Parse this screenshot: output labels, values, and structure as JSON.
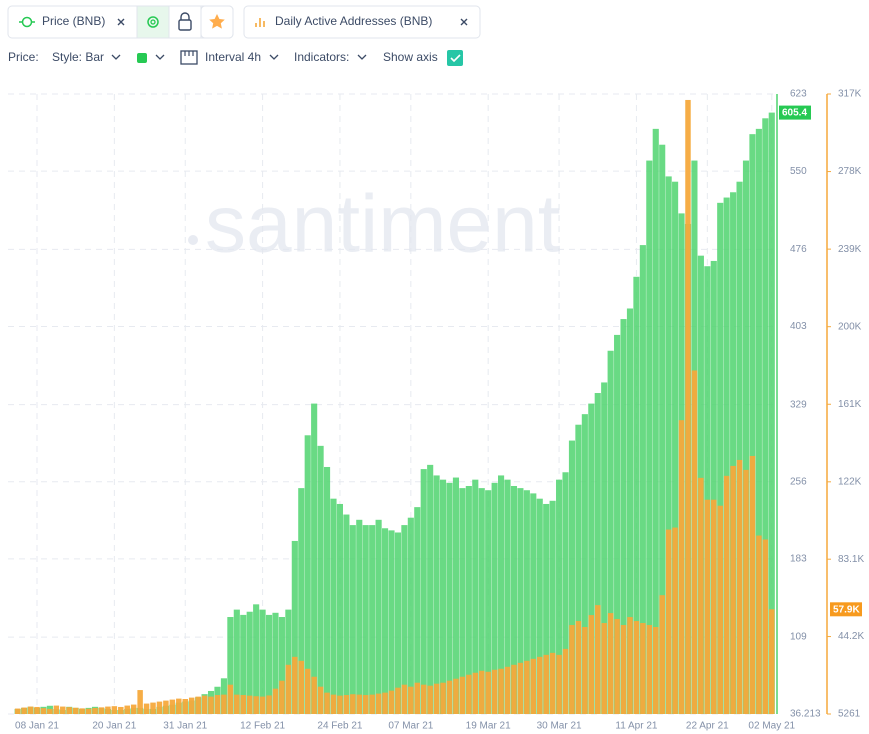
{
  "ui": {
    "toolbar": {
      "label": "Price:",
      "style": "Style: Bar",
      "interval": "Interval 4h",
      "indicators": "Indicators:",
      "show_axis": "Show axis"
    },
    "watermark": "santiment"
  },
  "chart_data": {
    "type": "bar",
    "x": [
      "2021-01-05",
      "2021-01-06",
      "2021-01-07",
      "2021-01-08",
      "2021-01-09",
      "2021-01-10",
      "2021-01-11",
      "2021-01-12",
      "2021-01-13",
      "2021-01-14",
      "2021-01-15",
      "2021-01-16",
      "2021-01-17",
      "2021-01-18",
      "2021-01-19",
      "2021-01-20",
      "2021-01-21",
      "2021-01-22",
      "2021-01-23",
      "2021-01-24",
      "2021-01-25",
      "2021-01-26",
      "2021-01-27",
      "2021-01-28",
      "2021-01-29",
      "2021-01-30",
      "2021-01-31",
      "2021-02-01",
      "2021-02-02",
      "2021-02-03",
      "2021-02-04",
      "2021-02-05",
      "2021-02-06",
      "2021-02-07",
      "2021-02-08",
      "2021-02-09",
      "2021-02-10",
      "2021-02-11",
      "2021-02-12",
      "2021-02-13",
      "2021-02-14",
      "2021-02-15",
      "2021-02-16",
      "2021-02-17",
      "2021-02-18",
      "2021-02-19",
      "2021-02-20",
      "2021-02-21",
      "2021-02-22",
      "2021-02-23",
      "2021-02-24",
      "2021-02-25",
      "2021-02-26",
      "2021-02-27",
      "2021-02-28",
      "2021-03-01",
      "2021-03-02",
      "2021-03-03",
      "2021-03-04",
      "2021-03-05",
      "2021-03-06",
      "2021-03-07",
      "2021-03-08",
      "2021-03-09",
      "2021-03-10",
      "2021-03-11",
      "2021-03-12",
      "2021-03-13",
      "2021-03-14",
      "2021-03-15",
      "2021-03-16",
      "2021-03-17",
      "2021-03-18",
      "2021-03-19",
      "2021-03-20",
      "2021-03-21",
      "2021-03-22",
      "2021-03-23",
      "2021-03-24",
      "2021-03-25",
      "2021-03-26",
      "2021-03-27",
      "2021-03-28",
      "2021-03-29",
      "2021-03-30",
      "2021-03-31",
      "2021-04-01",
      "2021-04-02",
      "2021-04-03",
      "2021-04-04",
      "2021-04-05",
      "2021-04-06",
      "2021-04-07",
      "2021-04-08",
      "2021-04-09",
      "2021-04-10",
      "2021-04-11",
      "2021-04-12",
      "2021-04-13",
      "2021-04-14",
      "2021-04-15",
      "2021-04-16",
      "2021-04-17",
      "2021-04-18",
      "2021-04-19",
      "2021-04-20",
      "2021-04-21",
      "2021-04-22",
      "2021-04-23",
      "2021-04-24",
      "2021-04-25",
      "2021-04-26",
      "2021-04-27",
      "2021-04-28",
      "2021-04-29",
      "2021-04-30",
      "2021-05-01",
      "2021-05-02"
    ],
    "xlim": [
      "2021-01-04",
      "2021-05-03"
    ],
    "xticks": [
      {
        "value": "2021-01-08",
        "label": "08 Jan 21"
      },
      {
        "value": "2021-01-20",
        "label": "20 Jan 21"
      },
      {
        "value": "2021-01-31",
        "label": "31 Jan 21"
      },
      {
        "value": "2021-02-12",
        "label": "12 Feb 21"
      },
      {
        "value": "2021-02-24",
        "label": "24 Feb 21"
      },
      {
        "value": "2021-03-07",
        "label": "07 Mar 21"
      },
      {
        "value": "2021-03-19",
        "label": "19 Mar 21"
      },
      {
        "value": "2021-03-30",
        "label": "30 Mar 21"
      },
      {
        "value": "2021-04-11",
        "label": "11 Apr 21"
      },
      {
        "value": "2021-04-22",
        "label": "22 Apr 21"
      },
      {
        "value": "2021-05-02",
        "label": "02 May 21"
      }
    ],
    "ylim": [
      36.213,
      623
    ],
    "yticks": [
      36.213,
      109,
      183,
      256,
      329,
      403,
      476,
      550,
      623
    ],
    "y2lim": [
      5261,
      317000
    ],
    "y2ticks": [
      5261,
      {
        "value": 44200,
        "label": "44.2K"
      },
      {
        "value": 83100,
        "label": "83.1K"
      },
      {
        "value": 122000,
        "label": "122K"
      },
      {
        "value": 161000,
        "label": "161K"
      },
      {
        "value": 200000,
        "label": "200K"
      },
      {
        "value": 239000,
        "label": "239K"
      },
      {
        "value": 278000,
        "label": "278K"
      },
      {
        "value": 317000,
        "label": "317K"
      }
    ],
    "grid": true,
    "series": [
      {
        "name": "Price (BNB)",
        "color": "#4fd36e",
        "axis": "y",
        "last_value_label": "605.4",
        "label_color": "#26c953",
        "values": [
          41,
          42,
          43,
          42,
          43,
          44,
          41,
          40,
          43,
          42,
          41,
          42,
          43,
          42,
          41,
          40,
          40,
          41,
          42,
          42,
          41,
          41,
          43,
          44,
          45,
          47,
          48,
          49,
          52,
          55,
          58,
          62,
          70,
          128,
          135,
          130,
          133,
          140,
          135,
          130,
          132,
          128,
          135,
          200,
          250,
          300,
          330,
          290,
          270,
          240,
          235,
          225,
          215,
          220,
          215,
          215,
          220,
          212,
          210,
          208,
          215,
          222,
          232,
          268,
          272,
          262,
          258,
          255,
          260,
          250,
          252,
          258,
          250,
          248,
          255,
          262,
          258,
          252,
          250,
          248,
          245,
          240,
          235,
          238,
          258,
          265,
          295,
          310,
          320,
          330,
          340,
          350,
          380,
          395,
          410,
          420,
          450,
          480,
          560,
          590,
          575,
          545,
          540,
          510,
          500,
          560,
          470,
          460,
          465,
          520,
          525,
          530,
          540,
          560,
          585,
          590,
          600,
          605.4
        ]
      },
      {
        "name": "Daily Active Addresses (BNB)",
        "color": "#f5a93c",
        "axis": "y2",
        "last_value_label": "57.9K",
        "label_color": "#f79a1e",
        "values": [
          8000,
          8500,
          9000,
          8800,
          8200,
          7800,
          9500,
          9000,
          8700,
          8400,
          8100,
          7900,
          8300,
          8600,
          9000,
          9200,
          8800,
          9500,
          10000,
          17300,
          10500,
          11000,
          11500,
          12000,
          12500,
          13000,
          12800,
          13500,
          14000,
          14500,
          14000,
          14800,
          15000,
          20000,
          15000,
          14800,
          14500,
          14200,
          14000,
          14600,
          18000,
          22000,
          30000,
          34000,
          32000,
          28000,
          24000,
          19000,
          16000,
          15000,
          14500,
          14800,
          15200,
          15000,
          14800,
          15000,
          15500,
          16000,
          17000,
          18500,
          20000,
          19000,
          21000,
          20000,
          19500,
          20500,
          21000,
          22000,
          23000,
          24000,
          25000,
          26000,
          27000,
          26500,
          27500,
          28000,
          29000,
          30000,
          31000,
          32000,
          33000,
          34000,
          35000,
          36000,
          35000,
          38000,
          50000,
          52000,
          49000,
          55000,
          60000,
          51000,
          56000,
          53000,
          50000,
          54000,
          52000,
          51000,
          50000,
          49000,
          65000,
          98000,
          99000,
          153000,
          314000,
          178000,
          124000,
          113000,
          113000,
          110000,
          125000,
          130000,
          133000,
          128000,
          135000,
          95000,
          93000,
          57900
        ]
      }
    ]
  }
}
